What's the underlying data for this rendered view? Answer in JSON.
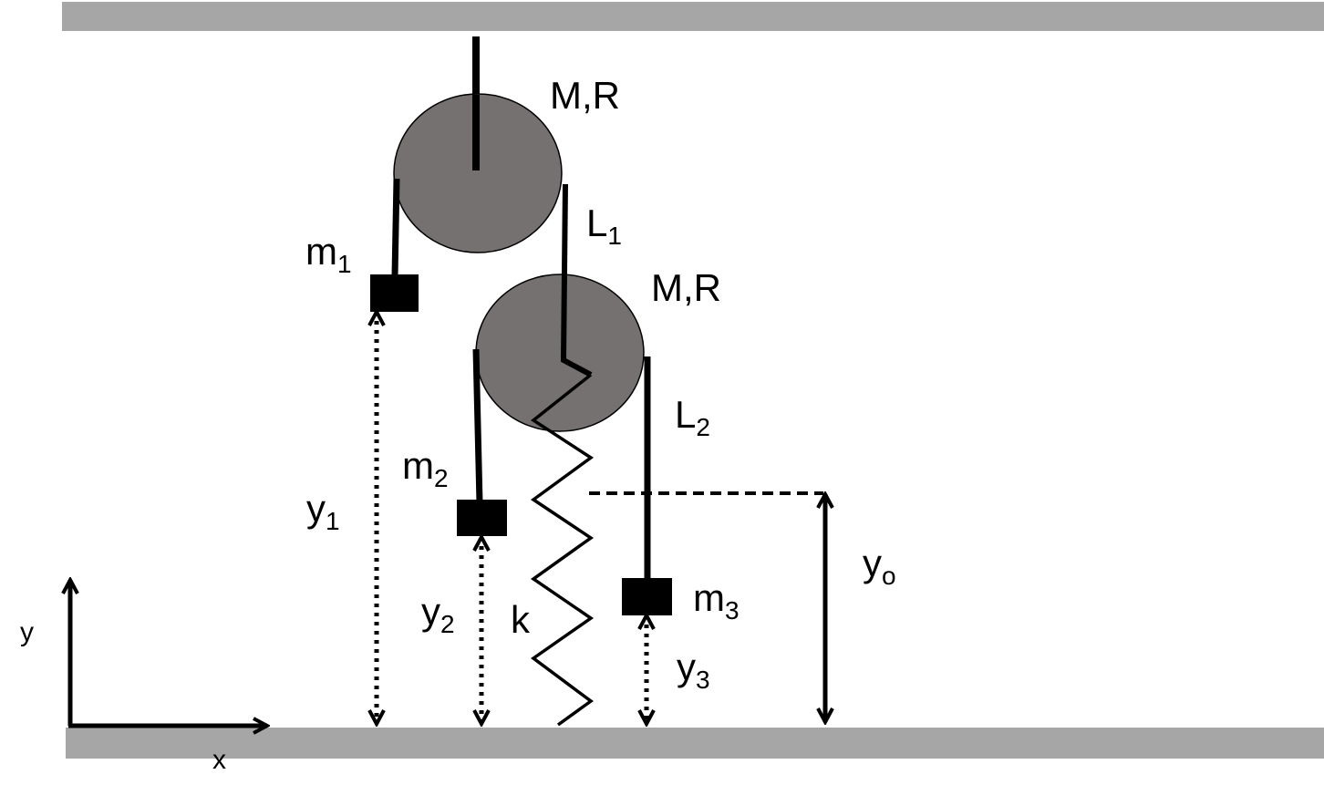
{
  "colors": {
    "surface": "#a6a6a6",
    "pulley": "#767171",
    "ink": "#000000"
  },
  "labels": {
    "pulley1": "M,R",
    "pulley2": "M,R",
    "L1": {
      "main": "L",
      "sub": "1"
    },
    "L2": {
      "main": "L",
      "sub": "2"
    },
    "m1": {
      "main": "m",
      "sub": "1"
    },
    "m2": {
      "main": "m",
      "sub": "2"
    },
    "m3": {
      "main": "m",
      "sub": "3"
    },
    "y1": {
      "main": "y",
      "sub": "1"
    },
    "y2": {
      "main": "y",
      "sub": "2"
    },
    "y3": {
      "main": "y",
      "sub": "3"
    },
    "yo": {
      "main": "y",
      "sub": "o"
    },
    "k": "k",
    "axis_y": "y",
    "axis_x": "x"
  }
}
